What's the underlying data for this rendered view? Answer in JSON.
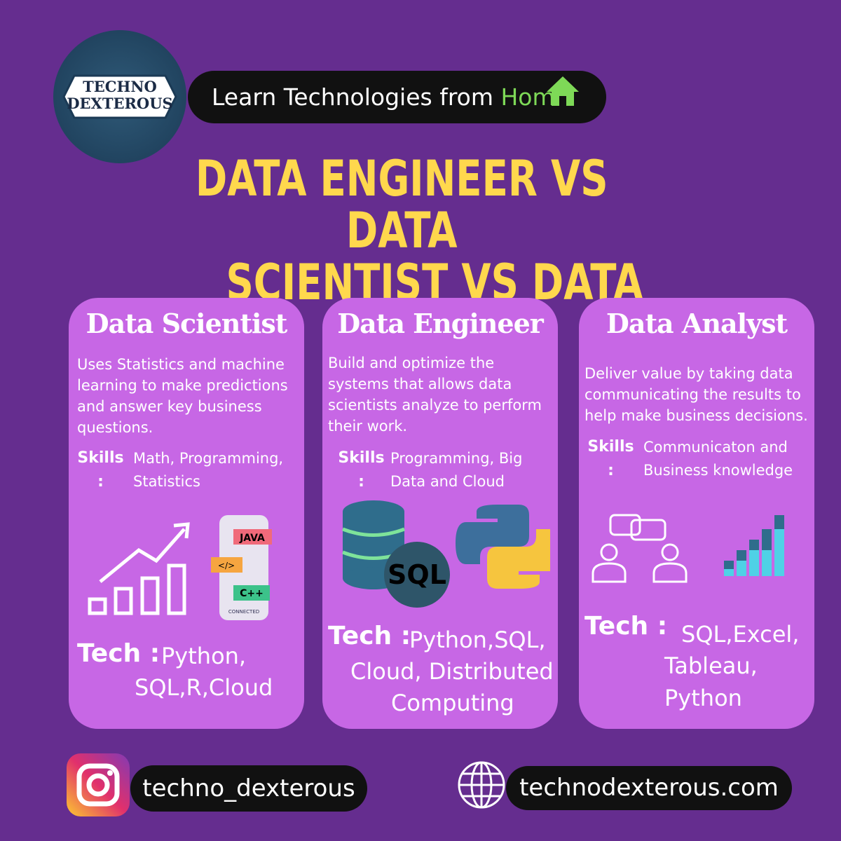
{
  "header": {
    "logo": [
      "TECHNO",
      "DEXTEROUS"
    ],
    "tagline": "Learn Technologies from ",
    "tagline_highlight": "Home"
  },
  "title": [
    "DATA ENGINEER VS DATA",
    "SCIENTIST VS DATA ANALYST"
  ],
  "cards": [
    {
      "title": "Data Scientist",
      "description": "Uses Statistics and machine learning to make predictions and answer key business questions.",
      "skills_label": "Skills :",
      "skills": "Math, Programming, Statistics",
      "tech_label": "Tech :",
      "tech": [
        "Python,",
        "SQL,R,Cloud"
      ],
      "icon_labels": [
        "JAVA",
        "</>",
        "C++",
        "CONNECTED"
      ]
    },
    {
      "title": "Data Engineer",
      "description": "Build and optimize the systems that allows data scientists analyze  to perform their work.",
      "skills_label": "Skills :",
      "skills": "Programming, Big Data and Cloud",
      "tech_label": "Tech :",
      "tech": [
        "Python,SQL,",
        "Cloud, Distributed",
        "Computing"
      ],
      "icon_labels": [
        "SQL"
      ]
    },
    {
      "title": "Data Analyst",
      "description": "Deliver value by taking data communicating the results to help make business decisions.",
      "skills_label": "Skills :",
      "skills": "Communicaton and Business knowledge",
      "tech_label": "Tech :",
      "tech": [
        "SQL,Excel,",
        "Tableau,",
        "Python"
      ]
    }
  ],
  "footer": {
    "instagram": "techno_dexterous",
    "website": "technodexterous.com"
  }
}
